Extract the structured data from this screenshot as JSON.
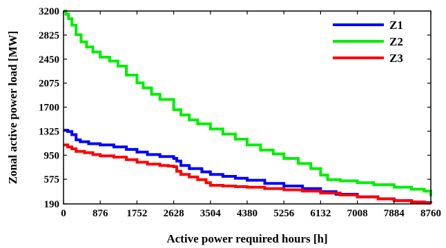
{
  "chart_data": {
    "type": "line",
    "title": "",
    "xlabel": "Active power required hours [h]",
    "ylabel": "Zonal active power load [MW]",
    "xlim": [
      0,
      8760
    ],
    "ylim": [
      190,
      3200
    ],
    "x_ticks": [
      "0",
      "876",
      "1752",
      "2628",
      "3504",
      "4380",
      "5256",
      "6132",
      "7008",
      "7884",
      "8760"
    ],
    "y_ticks": [
      "190",
      "575",
      "950",
      "1325",
      "1700",
      "2075",
      "2450",
      "2825",
      "3200"
    ],
    "grid": false,
    "legend_position": "top-right",
    "series": [
      {
        "name": "Z1",
        "color": "#0000ff",
        "x": [
          0,
          100,
          200,
          300,
          400,
          600,
          876,
          1200,
          1500,
          1752,
          2000,
          2300,
          2628,
          2700,
          2800,
          3000,
          3300,
          3504,
          3800,
          4100,
          4380,
          4800,
          5256,
          5700,
          6132,
          6500,
          7008,
          7500,
          7884,
          8300,
          8600,
          8760
        ],
        "y": [
          1340,
          1320,
          1270,
          1190,
          1160,
          1130,
          1110,
          1080,
          1040,
          1000,
          960,
          930,
          900,
          860,
          790,
          740,
          690,
          650,
          620,
          590,
          560,
          510,
          470,
          430,
          380,
          340,
          300,
          270,
          240,
          220,
          210,
          195
        ]
      },
      {
        "name": "Z2",
        "color": "#00ee00",
        "x": [
          0,
          60,
          120,
          200,
          300,
          420,
          550,
          700,
          876,
          1100,
          1300,
          1500,
          1752,
          1900,
          2100,
          2300,
          2628,
          2800,
          3000,
          3200,
          3504,
          3800,
          4100,
          4380,
          4700,
          5000,
          5256,
          5600,
          5900,
          6132,
          6300,
          6600,
          7008,
          7400,
          7884,
          8300,
          8600,
          8760
        ],
        "y": [
          3200,
          3150,
          3080,
          2980,
          2830,
          2720,
          2640,
          2560,
          2480,
          2420,
          2340,
          2200,
          2080,
          2000,
          1900,
          1820,
          1660,
          1580,
          1500,
          1440,
          1360,
          1280,
          1200,
          1110,
          1030,
          970,
          900,
          820,
          740,
          640,
          570,
          550,
          520,
          490,
          450,
          420,
          390,
          310
        ]
      },
      {
        "name": "Z3",
        "color": "#ff0000",
        "x": [
          0,
          100,
          200,
          300,
          500,
          700,
          876,
          1200,
          1500,
          1752,
          2000,
          2300,
          2500,
          2628,
          2700,
          2800,
          3000,
          3200,
          3400,
          3504,
          3800,
          4100,
          4380,
          4800,
          5256,
          5700,
          6132,
          6600,
          7008,
          7500,
          7884,
          8300,
          8600,
          8760
        ],
        "y": [
          1110,
          1080,
          1050,
          1010,
          990,
          960,
          940,
          920,
          880,
          840,
          810,
          790,
          780,
          770,
          700,
          650,
          610,
          570,
          520,
          480,
          470,
          460,
          450,
          430,
          410,
          390,
          360,
          330,
          300,
          270,
          240,
          220,
          205,
          195
        ]
      }
    ]
  }
}
